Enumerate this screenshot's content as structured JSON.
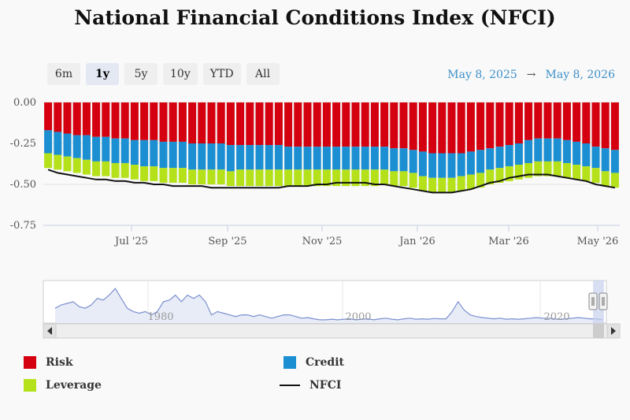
{
  "title": "National Financial Conditions Index (NFCI)",
  "range_buttons": [
    {
      "label": "6m",
      "active": false
    },
    {
      "label": "1y",
      "active": true
    },
    {
      "label": "5y",
      "active": false
    },
    {
      "label": "10y",
      "active": false
    },
    {
      "label": "YTD",
      "active": false
    },
    {
      "label": "All",
      "active": false
    }
  ],
  "date_range": {
    "from": "May 8, 2025",
    "arrow": "→",
    "to": "May 8, 2026"
  },
  "legend": [
    {
      "label": "Risk",
      "color": "#d4000f"
    },
    {
      "label": "Credit",
      "color": "#1b8fd2"
    },
    {
      "label": "Leverage",
      "color": "#b5e11a"
    },
    {
      "label": "NFCI",
      "color": "#111111"
    }
  ],
  "navigator": {
    "labels": [
      "1980",
      "2000",
      "2020"
    ]
  },
  "chart_data": {
    "type": "bar",
    "stacked": true,
    "title": "National Financial Conditions Index (NFCI)",
    "ylim": [
      -0.75,
      0
    ],
    "yticks": [
      "0.00",
      "-0.25",
      "-0.50",
      "-0.75"
    ],
    "xticks": [
      "Jul '25",
      "Sep '25",
      "Nov '25",
      "Jan '26",
      "Mar '26",
      "May '26"
    ],
    "grid": true,
    "legend_position": "bottom",
    "series": [
      {
        "name": "Risk",
        "color": "#d4000f",
        "values": [
          -0.17,
          -0.18,
          -0.19,
          -0.2,
          -0.2,
          -0.21,
          -0.21,
          -0.22,
          -0.22,
          -0.23,
          -0.23,
          -0.23,
          -0.24,
          -0.24,
          -0.24,
          -0.25,
          -0.25,
          -0.25,
          -0.25,
          -0.26,
          -0.26,
          -0.26,
          -0.26,
          -0.26,
          -0.26,
          -0.27,
          -0.27,
          -0.27,
          -0.27,
          -0.27,
          -0.27,
          -0.27,
          -0.27,
          -0.27,
          -0.27,
          -0.27,
          -0.28,
          -0.28,
          -0.29,
          -0.3,
          -0.31,
          -0.31,
          -0.31,
          -0.31,
          -0.3,
          -0.29,
          -0.28,
          -0.27,
          -0.26,
          -0.25,
          -0.23,
          -0.22,
          -0.22,
          -0.22,
          -0.23,
          -0.24,
          -0.25,
          -0.27,
          -0.28,
          -0.29
        ]
      },
      {
        "name": "Credit",
        "color": "#1b8fd2",
        "values": [
          -0.14,
          -0.14,
          -0.14,
          -0.14,
          -0.15,
          -0.15,
          -0.15,
          -0.15,
          -0.15,
          -0.15,
          -0.16,
          -0.16,
          -0.16,
          -0.16,
          -0.16,
          -0.16,
          -0.16,
          -0.16,
          -0.16,
          -0.16,
          -0.15,
          -0.15,
          -0.15,
          -0.15,
          -0.15,
          -0.14,
          -0.14,
          -0.14,
          -0.14,
          -0.14,
          -0.14,
          -0.14,
          -0.14,
          -0.14,
          -0.14,
          -0.14,
          -0.14,
          -0.14,
          -0.14,
          -0.15,
          -0.15,
          -0.15,
          -0.15,
          -0.14,
          -0.14,
          -0.14,
          -0.13,
          -0.13,
          -0.13,
          -0.13,
          -0.14,
          -0.14,
          -0.14,
          -0.14,
          -0.14,
          -0.14,
          -0.14,
          -0.13,
          -0.14,
          -0.14
        ]
      },
      {
        "name": "Leverage",
        "color": "#b5e11a",
        "values": [
          -0.09,
          -0.09,
          -0.09,
          -0.09,
          -0.09,
          -0.09,
          -0.09,
          -0.09,
          -0.09,
          -0.09,
          -0.09,
          -0.09,
          -0.09,
          -0.09,
          -0.09,
          -0.09,
          -0.09,
          -0.09,
          -0.09,
          -0.09,
          -0.1,
          -0.1,
          -0.1,
          -0.1,
          -0.1,
          -0.1,
          -0.1,
          -0.1,
          -0.1,
          -0.1,
          -0.1,
          -0.1,
          -0.1,
          -0.1,
          -0.1,
          -0.09,
          -0.09,
          -0.09,
          -0.09,
          -0.09,
          -0.09,
          -0.09,
          -0.09,
          -0.09,
          -0.09,
          -0.09,
          -0.09,
          -0.09,
          -0.09,
          -0.09,
          -0.09,
          -0.09,
          -0.09,
          -0.09,
          -0.09,
          -0.09,
          -0.09,
          -0.09,
          -0.09,
          -0.09
        ]
      },
      {
        "name": "NFCI",
        "type": "line",
        "color": "#111111",
        "values": [
          -0.41,
          -0.43,
          -0.44,
          -0.45,
          -0.46,
          -0.47,
          -0.47,
          -0.48,
          -0.48,
          -0.49,
          -0.49,
          -0.5,
          -0.5,
          -0.51,
          -0.51,
          -0.51,
          -0.51,
          -0.52,
          -0.52,
          -0.52,
          -0.52,
          -0.52,
          -0.52,
          -0.52,
          -0.52,
          -0.51,
          -0.51,
          -0.51,
          -0.5,
          -0.5,
          -0.49,
          -0.49,
          -0.49,
          -0.49,
          -0.5,
          -0.5,
          -0.51,
          -0.52,
          -0.53,
          -0.54,
          -0.55,
          -0.55,
          -0.55,
          -0.54,
          -0.53,
          -0.51,
          -0.49,
          -0.48,
          -0.46,
          -0.45,
          -0.44,
          -0.44,
          -0.44,
          -0.45,
          -0.46,
          -0.47,
          -0.48,
          -0.5,
          -0.51,
          -0.52
        ]
      }
    ]
  },
  "navigator_data": {
    "values": [
      -0.1,
      0.0,
      0.05,
      0.1,
      -0.05,
      -0.1,
      0.0,
      0.2,
      0.15,
      0.3,
      0.5,
      0.2,
      -0.1,
      -0.2,
      -0.25,
      -0.2,
      -0.3,
      -0.2,
      0.1,
      0.15,
      0.3,
      0.1,
      0.3,
      0.2,
      0.3,
      0.1,
      -0.3,
      -0.2,
      -0.25,
      -0.3,
      -0.35,
      -0.3,
      -0.3,
      -0.35,
      -0.3,
      -0.35,
      -0.4,
      -0.35,
      -0.3,
      -0.3,
      -0.35,
      -0.4,
      -0.38,
      -0.42,
      -0.45,
      -0.45,
      -0.43,
      -0.45,
      -0.43,
      -0.42,
      -0.45,
      -0.43,
      -0.42,
      -0.45,
      -0.42,
      -0.4,
      -0.43,
      -0.45,
      -0.42,
      -0.4,
      -0.43,
      -0.42,
      -0.43,
      -0.41,
      -0.42,
      -0.42,
      -0.2,
      0.1,
      -0.15,
      -0.3,
      -0.35,
      -0.38,
      -0.4,
      -0.42,
      -0.4,
      -0.43,
      -0.42,
      -0.43,
      -0.42,
      -0.4,
      -0.38,
      -0.4,
      -0.4,
      -0.42,
      -0.43,
      -0.42,
      -0.4,
      -0.38,
      -0.4,
      -0.42,
      -0.42,
      -0.44
    ]
  }
}
